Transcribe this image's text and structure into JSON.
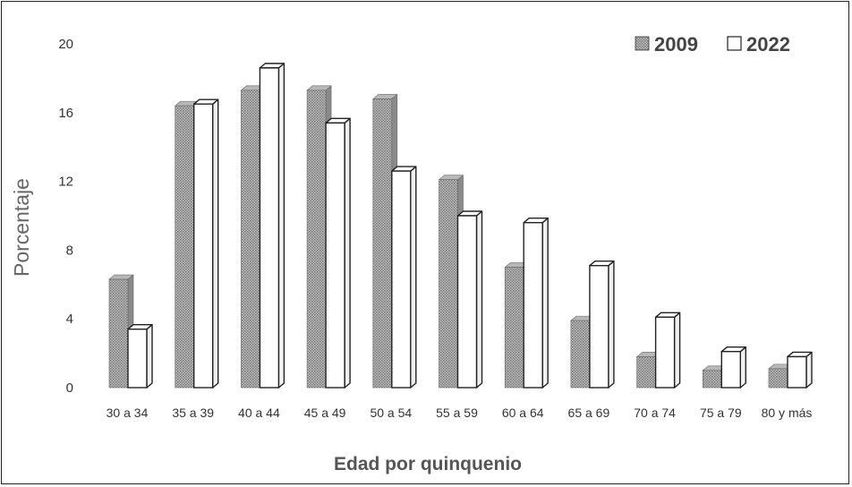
{
  "chart_data": {
    "type": "bar",
    "categories": [
      "30 a 34",
      "35 a 39",
      "40 a 44",
      "45 a 49",
      "50 a 54",
      "55 a 59",
      "60 a 64",
      "65 a 69",
      "70 a 74",
      "75 a 79",
      "80 y más"
    ],
    "series": [
      {
        "name": "2009",
        "values": [
          6.3,
          16.4,
          17.3,
          17.3,
          16.8,
          12.1,
          7.0,
          3.9,
          1.8,
          1.0,
          1.1
        ]
      },
      {
        "name": "2022",
        "values": [
          3.4,
          16.5,
          18.6,
          15.4,
          12.6,
          10.0,
          9.6,
          7.1,
          4.1,
          2.1,
          1.8
        ]
      }
    ],
    "title": "",
    "xlabel": "Edad por quinquenio",
    "ylabel": "Porcentaje",
    "ylim": [
      0,
      20
    ],
    "yticks": [
      0,
      4,
      8,
      12,
      16,
      20
    ],
    "grid": false,
    "legend_position": "top-right",
    "colors": {
      "2009": "#9a9a9a",
      "2022": "#ffffff",
      "outline": "#222222"
    }
  }
}
